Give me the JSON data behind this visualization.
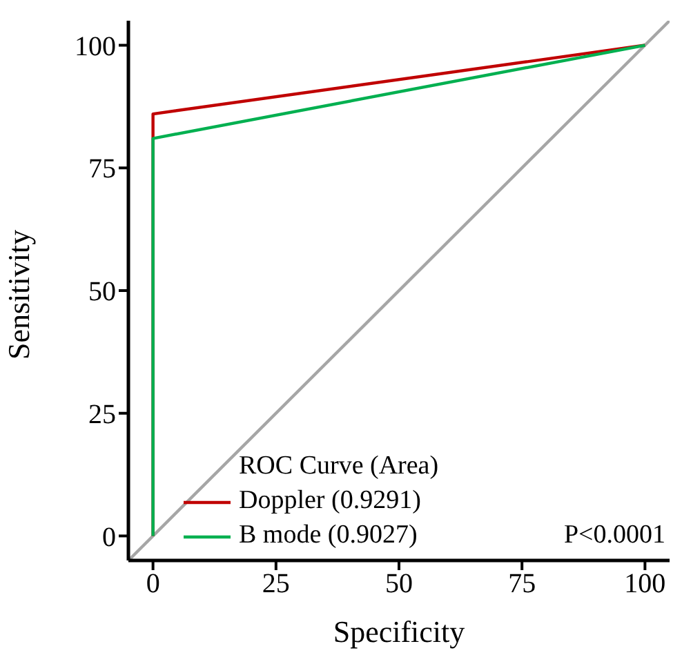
{
  "chart_data": {
    "type": "line",
    "xlabel": "Specificity",
    "ylabel": "Sensitivity",
    "xlim": [
      -5,
      105
    ],
    "ylim": [
      -5,
      105
    ],
    "xticks": [
      0,
      25,
      50,
      75,
      100
    ],
    "yticks": [
      0,
      25,
      50,
      75,
      100
    ],
    "grid": false,
    "legend": "bottom",
    "legend_title": "ROC Curve (Area)",
    "marker": "none",
    "line_style": "solid",
    "series": [
      {
        "type": "line",
        "color": "#a6a6a6",
        "x": [
          -5,
          105
        ],
        "values": [
          -5,
          105
        ]
      },
      {
        "name": "Doppler (0.9291)",
        "color": "#c00000",
        "x": [
          0,
          0,
          100
        ],
        "values": [
          0,
          86,
          100
        ]
      },
      {
        "name": "B mode (0.9027)",
        "color": "#00b050",
        "x": [
          0,
          0,
          100
        ],
        "values": [
          0,
          81,
          100
        ]
      }
    ],
    "annotations": [
      "P<0.0001"
    ]
  }
}
